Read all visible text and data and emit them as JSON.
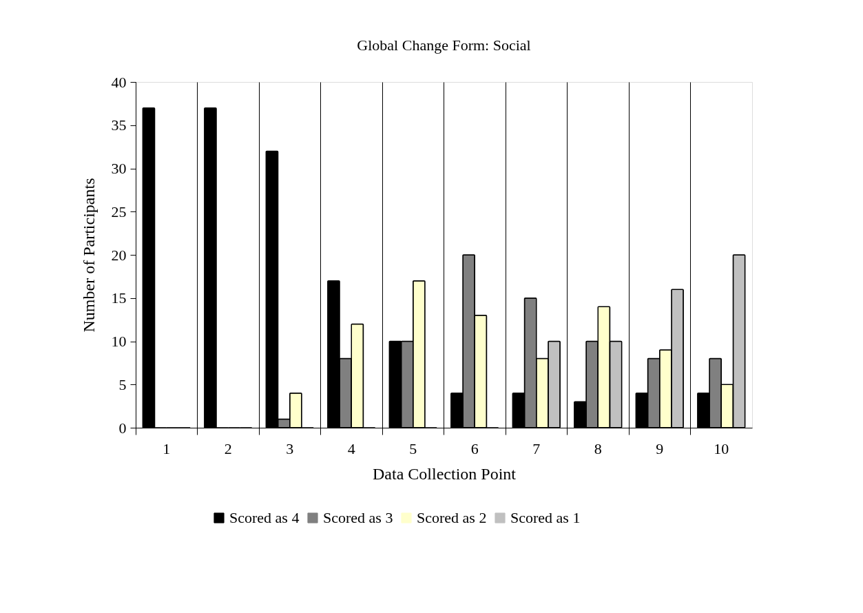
{
  "chart_data": {
    "type": "bar",
    "title": "Global Change Form: Social",
    "xlabel": "Data Collection Point",
    "ylabel": "Number of Participants",
    "categories": [
      "1",
      "2",
      "3",
      "4",
      "5",
      "6",
      "7",
      "8",
      "9",
      "10"
    ],
    "series": [
      {
        "name": "Scored as 4",
        "color": "#000000",
        "values": [
          37,
          37,
          32,
          17,
          10,
          4,
          4,
          3,
          4,
          4
        ]
      },
      {
        "name": "Scored as 3",
        "color": "#808080",
        "values": [
          0,
          0,
          1,
          8,
          10,
          20,
          15,
          10,
          8,
          8
        ]
      },
      {
        "name": "Scored as 2",
        "color": "#ffffcc",
        "values": [
          0,
          0,
          4,
          12,
          17,
          13,
          8,
          14,
          9,
          5
        ]
      },
      {
        "name": "Scored as 1",
        "color": "#c0c0c0",
        "values": [
          0,
          0,
          0,
          0,
          0,
          0,
          10,
          10,
          16,
          20
        ]
      }
    ],
    "ylim": [
      0,
      40
    ],
    "yticks": [
      0,
      5,
      10,
      15,
      20,
      25,
      30,
      35,
      40
    ],
    "grid": "x",
    "legend": "bottom"
  }
}
